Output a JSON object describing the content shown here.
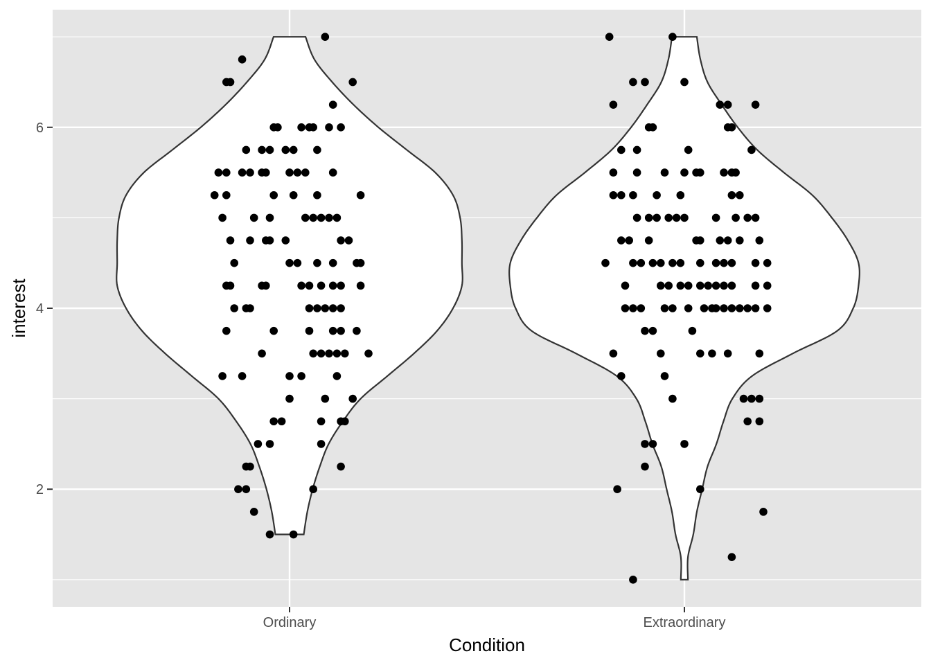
{
  "chart_data": {
    "type": "violin",
    "title": "",
    "xlabel": "Condition",
    "ylabel": "interest",
    "categories": [
      "Ordinary",
      "Extraordinary"
    ],
    "ylim": [
      0.7,
      7.3
    ],
    "yticks": [
      2,
      4,
      6
    ],
    "grid": true,
    "legend": "none",
    "colors": {
      "panel": "#e5e5e5",
      "grid": "#ffffff",
      "violin_fill": "#ffffff",
      "violin_line": "#333333",
      "point": "#000000",
      "tick_label": "#4d4d4d"
    },
    "series": [
      {
        "category": "Ordinary",
        "range": [
          1.5,
          7.0
        ],
        "density": [
          [
            1.5,
            0.08
          ],
          [
            1.75,
            0.1
          ],
          [
            2.0,
            0.13
          ],
          [
            2.25,
            0.17
          ],
          [
            2.5,
            0.22
          ],
          [
            2.75,
            0.3
          ],
          [
            3.0,
            0.4
          ],
          [
            3.25,
            0.55
          ],
          [
            3.5,
            0.7
          ],
          [
            3.75,
            0.83
          ],
          [
            4.0,
            0.92
          ],
          [
            4.25,
            0.97
          ],
          [
            4.5,
            0.97
          ],
          [
            4.75,
            0.97
          ],
          [
            5.0,
            0.96
          ],
          [
            5.25,
            0.92
          ],
          [
            5.5,
            0.82
          ],
          [
            5.75,
            0.66
          ],
          [
            6.0,
            0.5
          ],
          [
            6.25,
            0.36
          ],
          [
            6.5,
            0.24
          ],
          [
            6.75,
            0.14
          ],
          [
            7.0,
            0.09
          ]
        ],
        "points": [
          [
            7.0,
            0.09
          ],
          [
            6.75,
            -0.12
          ],
          [
            6.5,
            -0.16
          ],
          [
            6.5,
            -0.15
          ],
          [
            6.5,
            0.16
          ],
          [
            6.25,
            0.11
          ],
          [
            6.0,
            -0.04
          ],
          [
            6.0,
            -0.03
          ],
          [
            6.0,
            0.03
          ],
          [
            6.0,
            0.05
          ],
          [
            6.0,
            0.06
          ],
          [
            6.0,
            0.1
          ],
          [
            6.0,
            0.13
          ],
          [
            5.75,
            -0.11
          ],
          [
            5.75,
            -0.07
          ],
          [
            5.75,
            -0.05
          ],
          [
            5.75,
            -0.01
          ],
          [
            5.75,
            0.01
          ],
          [
            5.75,
            0.07
          ],
          [
            5.5,
            -0.18
          ],
          [
            5.5,
            -0.16
          ],
          [
            5.5,
            -0.12
          ],
          [
            5.5,
            -0.1
          ],
          [
            5.5,
            -0.07
          ],
          [
            5.5,
            -0.06
          ],
          [
            5.5,
            0.0
          ],
          [
            5.5,
            0.02
          ],
          [
            5.5,
            0.04
          ],
          [
            5.5,
            0.11
          ],
          [
            5.25,
            -0.19
          ],
          [
            5.25,
            -0.16
          ],
          [
            5.25,
            -0.04
          ],
          [
            5.25,
            0.01
          ],
          [
            5.25,
            0.07
          ],
          [
            5.25,
            0.18
          ],
          [
            5.0,
            -0.17
          ],
          [
            5.0,
            -0.09
          ],
          [
            5.0,
            -0.05
          ],
          [
            5.0,
            0.04
          ],
          [
            5.0,
            0.06
          ],
          [
            5.0,
            0.08
          ],
          [
            5.0,
            0.1
          ],
          [
            5.0,
            0.12
          ],
          [
            4.75,
            -0.15
          ],
          [
            4.75,
            -0.1
          ],
          [
            4.75,
            -0.06
          ],
          [
            4.75,
            -0.05
          ],
          [
            4.75,
            -0.01
          ],
          [
            4.75,
            0.13
          ],
          [
            4.75,
            0.15
          ],
          [
            4.5,
            -0.14
          ],
          [
            4.5,
            0.0
          ],
          [
            4.5,
            0.02
          ],
          [
            4.5,
            0.07
          ],
          [
            4.5,
            0.11
          ],
          [
            4.5,
            0.17
          ],
          [
            4.5,
            0.18
          ],
          [
            4.25,
            -0.16
          ],
          [
            4.25,
            -0.15
          ],
          [
            4.25,
            -0.07
          ],
          [
            4.25,
            -0.06
          ],
          [
            4.25,
            0.03
          ],
          [
            4.25,
            0.05
          ],
          [
            4.25,
            0.08
          ],
          [
            4.25,
            0.11
          ],
          [
            4.25,
            0.13
          ],
          [
            4.25,
            0.18
          ],
          [
            4.0,
            -0.14
          ],
          [
            4.0,
            -0.11
          ],
          [
            4.0,
            -0.1
          ],
          [
            4.0,
            0.05
          ],
          [
            4.0,
            0.07
          ],
          [
            4.0,
            0.09
          ],
          [
            4.0,
            0.11
          ],
          [
            4.0,
            0.13
          ],
          [
            3.75,
            -0.16
          ],
          [
            3.75,
            -0.04
          ],
          [
            3.75,
            0.05
          ],
          [
            3.75,
            0.11
          ],
          [
            3.75,
            0.13
          ],
          [
            3.75,
            0.17
          ],
          [
            3.5,
            -0.07
          ],
          [
            3.5,
            0.06
          ],
          [
            3.5,
            0.08
          ],
          [
            3.5,
            0.1
          ],
          [
            3.5,
            0.12
          ],
          [
            3.5,
            0.14
          ],
          [
            3.5,
            0.2
          ],
          [
            3.25,
            -0.17
          ],
          [
            3.25,
            -0.12
          ],
          [
            3.25,
            0.0
          ],
          [
            3.25,
            0.03
          ],
          [
            3.25,
            0.12
          ],
          [
            3.0,
            0.0
          ],
          [
            3.0,
            0.09
          ],
          [
            3.0,
            0.16
          ],
          [
            2.75,
            -0.04
          ],
          [
            2.75,
            -0.02
          ],
          [
            2.75,
            0.08
          ],
          [
            2.75,
            0.13
          ],
          [
            2.75,
            0.14
          ],
          [
            2.5,
            -0.08
          ],
          [
            2.5,
            -0.05
          ],
          [
            2.5,
            0.08
          ],
          [
            2.25,
            -0.11
          ],
          [
            2.25,
            -0.1
          ],
          [
            2.25,
            0.13
          ],
          [
            2.0,
            -0.13
          ],
          [
            2.0,
            -0.11
          ],
          [
            2.0,
            0.06
          ],
          [
            1.75,
            -0.09
          ],
          [
            1.5,
            -0.05
          ],
          [
            1.5,
            0.01
          ]
        ]
      },
      {
        "category": "Extraordinary",
        "range": [
          1.0,
          7.0
        ],
        "density": [
          [
            1.0,
            0.02
          ],
          [
            1.25,
            0.02
          ],
          [
            1.5,
            0.05
          ],
          [
            1.75,
            0.07
          ],
          [
            2.0,
            0.1
          ],
          [
            2.25,
            0.13
          ],
          [
            2.5,
            0.18
          ],
          [
            2.75,
            0.22
          ],
          [
            3.0,
            0.27
          ],
          [
            3.25,
            0.38
          ],
          [
            3.5,
            0.61
          ],
          [
            3.75,
            0.86
          ],
          [
            4.0,
            0.95
          ],
          [
            4.25,
            0.98
          ],
          [
            4.5,
            0.98
          ],
          [
            4.75,
            0.92
          ],
          [
            5.0,
            0.83
          ],
          [
            5.25,
            0.72
          ],
          [
            5.5,
            0.56
          ],
          [
            5.75,
            0.41
          ],
          [
            6.0,
            0.3
          ],
          [
            6.25,
            0.21
          ],
          [
            6.5,
            0.13
          ],
          [
            6.75,
            0.09
          ],
          [
            7.0,
            0.07
          ]
        ],
        "points": [
          [
            7.0,
            -0.19
          ],
          [
            7.0,
            -0.03
          ],
          [
            6.5,
            -0.13
          ],
          [
            6.5,
            -0.1
          ],
          [
            6.5,
            0.0
          ],
          [
            6.25,
            -0.18
          ],
          [
            6.25,
            0.09
          ],
          [
            6.25,
            0.11
          ],
          [
            6.25,
            0.18
          ],
          [
            6.0,
            -0.09
          ],
          [
            6.0,
            -0.08
          ],
          [
            6.0,
            0.11
          ],
          [
            6.0,
            0.12
          ],
          [
            5.75,
            -0.16
          ],
          [
            5.75,
            -0.12
          ],
          [
            5.75,
            0.01
          ],
          [
            5.75,
            0.17
          ],
          [
            5.5,
            -0.18
          ],
          [
            5.5,
            -0.12
          ],
          [
            5.5,
            -0.05
          ],
          [
            5.5,
            0.0
          ],
          [
            5.5,
            0.03
          ],
          [
            5.5,
            0.04
          ],
          [
            5.5,
            0.1
          ],
          [
            5.5,
            0.12
          ],
          [
            5.5,
            0.13
          ],
          [
            5.25,
            -0.18
          ],
          [
            5.25,
            -0.16
          ],
          [
            5.25,
            -0.13
          ],
          [
            5.25,
            -0.07
          ],
          [
            5.25,
            -0.01
          ],
          [
            5.25,
            0.12
          ],
          [
            5.25,
            0.14
          ],
          [
            5.0,
            -0.12
          ],
          [
            5.0,
            -0.09
          ],
          [
            5.0,
            -0.07
          ],
          [
            5.0,
            -0.04
          ],
          [
            5.0,
            -0.02
          ],
          [
            5.0,
            0.0
          ],
          [
            5.0,
            0.08
          ],
          [
            5.0,
            0.13
          ],
          [
            5.0,
            0.16
          ],
          [
            5.0,
            0.18
          ],
          [
            4.75,
            -0.16
          ],
          [
            4.75,
            -0.14
          ],
          [
            4.75,
            -0.09
          ],
          [
            4.75,
            0.03
          ],
          [
            4.75,
            0.04
          ],
          [
            4.75,
            0.09
          ],
          [
            4.75,
            0.11
          ],
          [
            4.75,
            0.14
          ],
          [
            4.75,
            0.19
          ],
          [
            4.5,
            -0.2
          ],
          [
            4.5,
            -0.13
          ],
          [
            4.5,
            -0.11
          ],
          [
            4.5,
            -0.08
          ],
          [
            4.5,
            -0.06
          ],
          [
            4.5,
            -0.03
          ],
          [
            4.5,
            -0.01
          ],
          [
            4.5,
            0.04
          ],
          [
            4.5,
            0.08
          ],
          [
            4.5,
            0.1
          ],
          [
            4.5,
            0.12
          ],
          [
            4.5,
            0.18
          ],
          [
            4.5,
            0.21
          ],
          [
            4.25,
            -0.15
          ],
          [
            4.25,
            -0.06
          ],
          [
            4.25,
            -0.04
          ],
          [
            4.25,
            -0.01
          ],
          [
            4.25,
            0.01
          ],
          [
            4.25,
            0.04
          ],
          [
            4.25,
            0.06
          ],
          [
            4.25,
            0.08
          ],
          [
            4.25,
            0.1
          ],
          [
            4.25,
            0.12
          ],
          [
            4.25,
            0.18
          ],
          [
            4.25,
            0.21
          ],
          [
            4.0,
            -0.15
          ],
          [
            4.0,
            -0.13
          ],
          [
            4.0,
            -0.11
          ],
          [
            4.0,
            -0.05
          ],
          [
            4.0,
            -0.03
          ],
          [
            4.0,
            0.01
          ],
          [
            4.0,
            0.05
          ],
          [
            4.0,
            0.07
          ],
          [
            4.0,
            0.08
          ],
          [
            4.0,
            0.1
          ],
          [
            4.0,
            0.12
          ],
          [
            4.0,
            0.14
          ],
          [
            4.0,
            0.16
          ],
          [
            4.0,
            0.18
          ],
          [
            4.0,
            0.21
          ],
          [
            3.75,
            -0.1
          ],
          [
            3.75,
            -0.08
          ],
          [
            3.75,
            0.02
          ],
          [
            3.5,
            -0.18
          ],
          [
            3.5,
            -0.06
          ],
          [
            3.5,
            0.04
          ],
          [
            3.5,
            0.07
          ],
          [
            3.5,
            0.11
          ],
          [
            3.5,
            0.19
          ],
          [
            3.25,
            -0.16
          ],
          [
            3.25,
            -0.05
          ],
          [
            3.0,
            -0.03
          ],
          [
            3.0,
            0.15
          ],
          [
            3.0,
            0.17
          ],
          [
            3.0,
            0.19
          ],
          [
            2.75,
            0.16
          ],
          [
            2.75,
            0.19
          ],
          [
            2.5,
            -0.1
          ],
          [
            2.5,
            -0.08
          ],
          [
            2.5,
            0.0
          ],
          [
            2.25,
            -0.1
          ],
          [
            2.0,
            -0.17
          ],
          [
            2.0,
            0.04
          ],
          [
            1.75,
            0.2
          ],
          [
            1.25,
            0.12
          ],
          [
            1.0,
            -0.13
          ]
        ]
      }
    ]
  }
}
